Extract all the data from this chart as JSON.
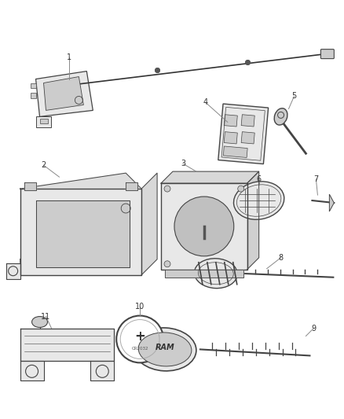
{
  "bg_color": "#ffffff",
  "line_color": "#444444",
  "gray_fill": "#e8e8e8",
  "dark_gray": "#aaaaaa",
  "mid_gray": "#cccccc"
}
